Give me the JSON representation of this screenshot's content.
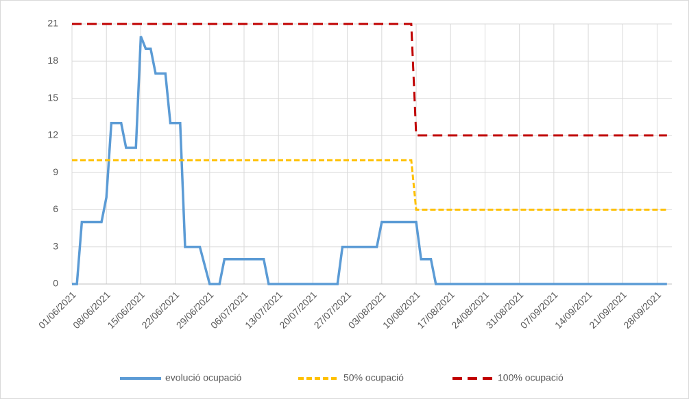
{
  "chart_data": {
    "type": "line",
    "xlim": [
      "01/06/2021",
      "01/10/2021"
    ],
    "xticks": [
      "01/06/2021",
      "08/06/2021",
      "15/06/2021",
      "22/06/2021",
      "29/06/2021",
      "06/07/2021",
      "13/07/2021",
      "20/07/2021",
      "27/07/2021",
      "03/08/2021",
      "10/08/2021",
      "17/08/2021",
      "24/08/2021",
      "31/08/2021",
      "07/09/2021",
      "14/09/2021",
      "21/09/2021",
      "28/09/2021"
    ],
    "ylim": [
      0,
      21
    ],
    "yticks": [
      0,
      3,
      6,
      9,
      12,
      15,
      18,
      21
    ],
    "grid": true,
    "legend": "bottom",
    "series": [
      {
        "name": "evolució ocupació",
        "color": "#5b9bd5",
        "dash": "solid",
        "x": [
          "01/06/2021",
          "02/06/2021",
          "03/06/2021",
          "07/06/2021",
          "08/06/2021",
          "09/06/2021",
          "11/06/2021",
          "12/06/2021",
          "14/06/2021",
          "15/06/2021",
          "16/06/2021",
          "17/06/2021",
          "18/06/2021",
          "20/06/2021",
          "21/06/2021",
          "23/06/2021",
          "24/06/2021",
          "27/06/2021",
          "29/06/2021",
          "01/07/2021",
          "02/07/2021",
          "10/07/2021",
          "11/07/2021",
          "25/07/2021",
          "26/07/2021",
          "02/08/2021",
          "03/08/2021",
          "09/08/2021",
          "10/08/2021",
          "11/08/2021",
          "13/08/2021",
          "14/08/2021",
          "30/09/2021"
        ],
        "values": [
          0,
          0,
          5,
          5,
          7,
          13,
          13,
          11,
          11,
          20,
          19,
          19,
          17,
          17,
          13,
          13,
          3,
          3,
          0,
          0,
          2,
          2,
          0,
          0,
          3,
          3,
          5,
          5,
          5,
          2,
          2,
          0,
          0
        ]
      },
      {
        "name": "50% ocupació",
        "color": "#ffc000",
        "dash": "dashed",
        "x": [
          "01/06/2021",
          "09/08/2021",
          "10/08/2021",
          "30/09/2021"
        ],
        "values": [
          10,
          10,
          6,
          6
        ]
      },
      {
        "name": "100% ocupació",
        "color": "#c00000",
        "dash": "dashed",
        "x": [
          "01/06/2021",
          "09/08/2021",
          "10/08/2021",
          "30/09/2021"
        ],
        "values": [
          21,
          21,
          12,
          12
        ]
      }
    ]
  }
}
